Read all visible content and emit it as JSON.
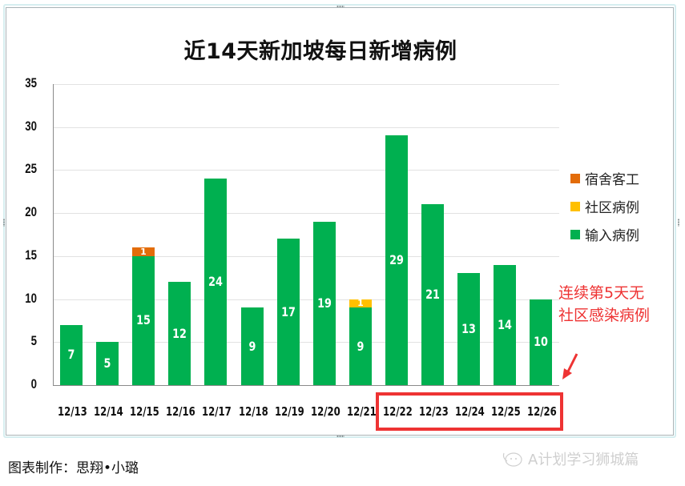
{
  "chart_data": {
    "type": "bar",
    "stacked": true,
    "title": "近14天新加坡每日新增病例",
    "xlabel": "",
    "ylabel": "",
    "ylim": [
      0,
      35
    ],
    "yticks": [
      0,
      5,
      10,
      15,
      20,
      25,
      30,
      35
    ],
    "grid": true,
    "legend_position": "right",
    "categories": [
      "12/13",
      "12/14",
      "12/15",
      "12/16",
      "12/17",
      "12/18",
      "12/19",
      "12/20",
      "12/21",
      "12/22",
      "12/23",
      "12/24",
      "12/25",
      "12/26"
    ],
    "series": [
      {
        "name": "输入病例",
        "color": "#00b050",
        "values": [
          7,
          5,
          15,
          12,
          24,
          9,
          17,
          19,
          9,
          29,
          21,
          13,
          14,
          10
        ]
      },
      {
        "name": "社区病例",
        "color": "#ffc000",
        "values": [
          0,
          0,
          0,
          0,
          0,
          0,
          0,
          0,
          1,
          0,
          0,
          0,
          0,
          0
        ]
      },
      {
        "name": "宿舍客工",
        "color": "#e36c09",
        "values": [
          0,
          0,
          1,
          0,
          0,
          0,
          0,
          0,
          0,
          0,
          0,
          0,
          0,
          0
        ]
      }
    ],
    "annotations": [
      {
        "text": "连续第5天无社区感染病例",
        "color": "#ee3333",
        "highlight_categories": [
          "12/22",
          "12/23",
          "12/24",
          "12/25",
          "12/26"
        ]
      }
    ]
  },
  "legend": [
    {
      "label": "宿舍客工",
      "color": "#e36c09"
    },
    {
      "label": "社区病例",
      "color": "#ffc000"
    },
    {
      "label": "输入病例",
      "color": "#00b050"
    }
  ],
  "callout": {
    "line1": "连续第5天无",
    "line2": "社区感染病例"
  },
  "credit": "图表制作：思翔•小璐",
  "watermark": "A计划学习狮城篇"
}
